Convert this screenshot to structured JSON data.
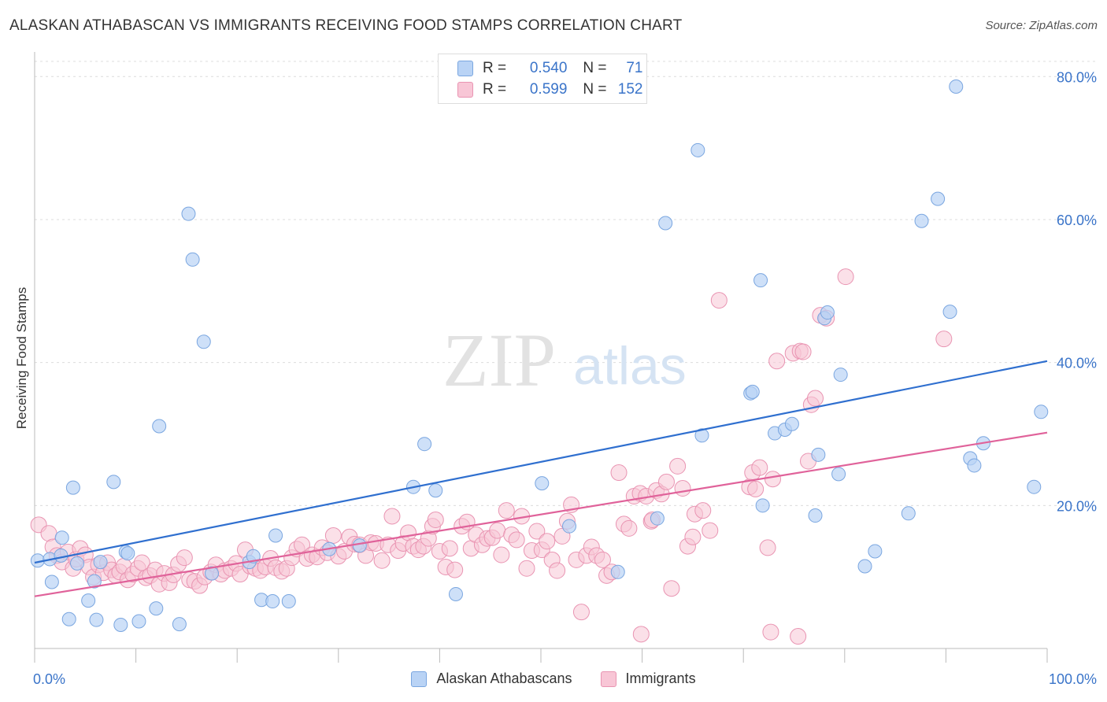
{
  "title": "ALASKAN ATHABASCAN VS IMMIGRANTS RECEIVING FOOD STAMPS CORRELATION CHART",
  "source": "Source: ZipAtlas.com",
  "watermark": {
    "zip": "ZIP",
    "atlas": "atlas"
  },
  "legend_top": [
    {
      "r_label": "R =",
      "r_value": "0.540",
      "n_label": "N =",
      "n_value": "71"
    },
    {
      "r_label": "R =",
      "r_value": "0.599",
      "n_label": "N =",
      "n_value": "152"
    }
  ],
  "colors": {
    "blue_fill": "#b9d3f5",
    "blue_stroke": "#7aa6e0",
    "blue_line": "#2f6fcf",
    "pink_fill": "#f8c6d6",
    "pink_stroke": "#e994b2",
    "pink_line": "#e0629a",
    "tick_text": "#3a74c9",
    "grid": "#dcdcdc"
  },
  "chart_data": {
    "type": "scatter",
    "title": "ALASKAN ATHABASCAN VS IMMIGRANTS RECEIVING FOOD STAMPS CORRELATION CHART",
    "xlabel": "",
    "ylabel": "Receiving Food Stamps",
    "xlim": [
      0,
      100
    ],
    "ylim": [
      0,
      83
    ],
    "x_tick_labels": [
      "0.0%",
      "100.0%"
    ],
    "y_ticks": [
      20,
      40,
      60,
      80
    ],
    "y_tick_labels": [
      "20.0%",
      "40.0%",
      "60.0%",
      "80.0%"
    ],
    "grid": true,
    "legend_position": "bottom-center",
    "series": [
      {
        "name": "Alaskan Athabascans",
        "color": "#b9d3f5",
        "trend": {
          "x": [
            0,
            100
          ],
          "y": [
            12.0,
            40.2
          ]
        },
        "points": [
          [
            0.3,
            12.3
          ],
          [
            1.5,
            12.5
          ],
          [
            1.7,
            9.3
          ],
          [
            2.7,
            15.5
          ],
          [
            2.6,
            13.0
          ],
          [
            3.4,
            4.1
          ],
          [
            3.8,
            22.5
          ],
          [
            4.2,
            11.9
          ],
          [
            5.3,
            6.7
          ],
          [
            5.9,
            9.4
          ],
          [
            6.1,
            4.0
          ],
          [
            6.5,
            12.1
          ],
          [
            7.8,
            23.3
          ],
          [
            8.5,
            3.3
          ],
          [
            9.0,
            13.5
          ],
          [
            9.2,
            13.3
          ],
          [
            10.3,
            3.8
          ],
          [
            12.0,
            5.6
          ],
          [
            12.3,
            31.1
          ],
          [
            14.3,
            3.4
          ],
          [
            15.2,
            60.8
          ],
          [
            15.6,
            54.4
          ],
          [
            16.7,
            42.9
          ],
          [
            17.5,
            10.5
          ],
          [
            21.2,
            12.1
          ],
          [
            21.6,
            12.9
          ],
          [
            22.4,
            6.8
          ],
          [
            23.5,
            6.6
          ],
          [
            23.8,
            15.8
          ],
          [
            25.1,
            6.6
          ],
          [
            29.1,
            13.9
          ],
          [
            32.1,
            14.4
          ],
          [
            37.4,
            22.6
          ],
          [
            38.5,
            28.6
          ],
          [
            39.6,
            22.1
          ],
          [
            41.6,
            7.6
          ],
          [
            50.1,
            23.1
          ],
          [
            52.8,
            17.1
          ],
          [
            57.6,
            10.7
          ],
          [
            61.5,
            18.2
          ],
          [
            62.3,
            59.5
          ],
          [
            65.5,
            69.7
          ],
          [
            65.9,
            29.8
          ],
          [
            70.7,
            35.7
          ],
          [
            70.9,
            35.9
          ],
          [
            71.7,
            51.5
          ],
          [
            71.9,
            20.0
          ],
          [
            73.1,
            30.1
          ],
          [
            74.1,
            30.6
          ],
          [
            74.8,
            31.4
          ],
          [
            77.1,
            18.6
          ],
          [
            77.4,
            27.1
          ],
          [
            78.0,
            46.2
          ],
          [
            78.3,
            47.0
          ],
          [
            79.4,
            24.4
          ],
          [
            79.6,
            38.3
          ],
          [
            82.0,
            11.5
          ],
          [
            83.0,
            13.6
          ],
          [
            86.3,
            18.9
          ],
          [
            87.6,
            59.8
          ],
          [
            89.2,
            62.9
          ],
          [
            90.4,
            47.1
          ],
          [
            91.0,
            78.6
          ],
          [
            92.4,
            26.6
          ],
          [
            92.8,
            25.6
          ],
          [
            93.7,
            28.7
          ],
          [
            98.7,
            22.6
          ],
          [
            99.4,
            33.1
          ]
        ]
      },
      {
        "name": "Immigrants",
        "color": "#f8c6d6",
        "trend": {
          "x": [
            0,
            100
          ],
          "y": [
            7.3,
            30.2
          ]
        },
        "points": [
          [
            0.4,
            17.3
          ],
          [
            1.4,
            16.1
          ],
          [
            1.8,
            14.2
          ],
          [
            2.2,
            13.0
          ],
          [
            2.7,
            12.1
          ],
          [
            3.3,
            13.5
          ],
          [
            3.8,
            11.2
          ],
          [
            4.1,
            12.5
          ],
          [
            4.5,
            14.0
          ],
          [
            5.0,
            13.1
          ],
          [
            5.4,
            11.4
          ],
          [
            5.8,
            10.0
          ],
          [
            6.3,
            11.7
          ],
          [
            6.8,
            10.6
          ],
          [
            7.2,
            12.0
          ],
          [
            7.6,
            11.0
          ],
          [
            8.0,
            10.2
          ],
          [
            8.4,
            10.7
          ],
          [
            8.8,
            11.5
          ],
          [
            9.2,
            9.6
          ],
          [
            9.7,
            10.4
          ],
          [
            10.2,
            11.2
          ],
          [
            10.6,
            12.0
          ],
          [
            11.0,
            9.9
          ],
          [
            11.4,
            10.2
          ],
          [
            11.9,
            11.0
          ],
          [
            12.3,
            9.0
          ],
          [
            12.8,
            10.5
          ],
          [
            13.3,
            9.2
          ],
          [
            13.7,
            10.3
          ],
          [
            14.2,
            11.8
          ],
          [
            14.8,
            12.7
          ],
          [
            15.3,
            9.6
          ],
          [
            15.8,
            9.4
          ],
          [
            16.3,
            8.8
          ],
          [
            16.8,
            10.0
          ],
          [
            17.4,
            10.7
          ],
          [
            17.9,
            11.7
          ],
          [
            18.4,
            10.4
          ],
          [
            18.8,
            10.9
          ],
          [
            19.4,
            11.2
          ],
          [
            19.9,
            11.9
          ],
          [
            20.3,
            10.4
          ],
          [
            20.8,
            13.8
          ],
          [
            21.3,
            11.5
          ],
          [
            21.8,
            11.2
          ],
          [
            22.3,
            10.9
          ],
          [
            22.8,
            11.4
          ],
          [
            23.3,
            12.6
          ],
          [
            23.8,
            11.3
          ],
          [
            24.4,
            10.8
          ],
          [
            24.9,
            11.2
          ],
          [
            25.4,
            12.7
          ],
          [
            25.9,
            13.9
          ],
          [
            26.4,
            14.5
          ],
          [
            26.9,
            12.6
          ],
          [
            27.4,
            13.1
          ],
          [
            27.9,
            12.8
          ],
          [
            28.4,
            14.1
          ],
          [
            28.9,
            13.4
          ],
          [
            29.5,
            15.8
          ],
          [
            30.0,
            12.9
          ],
          [
            30.6,
            13.6
          ],
          [
            31.1,
            15.6
          ],
          [
            31.6,
            14.6
          ],
          [
            32.1,
            14.5
          ],
          [
            32.7,
            13.0
          ],
          [
            33.2,
            14.8
          ],
          [
            33.7,
            14.7
          ],
          [
            34.3,
            12.3
          ],
          [
            34.9,
            14.5
          ],
          [
            35.3,
            18.5
          ],
          [
            35.9,
            13.7
          ],
          [
            36.4,
            14.7
          ],
          [
            36.9,
            16.2
          ],
          [
            37.4,
            14.3
          ],
          [
            37.9,
            13.8
          ],
          [
            38.4,
            14.3
          ],
          [
            38.9,
            15.4
          ],
          [
            39.3,
            17.1
          ],
          [
            39.6,
            18.0
          ],
          [
            40.0,
            13.6
          ],
          [
            40.6,
            11.4
          ],
          [
            41.0,
            14.0
          ],
          [
            41.5,
            11.0
          ],
          [
            42.2,
            17.1
          ],
          [
            42.7,
            17.7
          ],
          [
            43.1,
            14.0
          ],
          [
            43.6,
            15.9
          ],
          [
            44.2,
            14.5
          ],
          [
            44.7,
            15.4
          ],
          [
            45.2,
            15.5
          ],
          [
            45.7,
            16.5
          ],
          [
            46.1,
            13.1
          ],
          [
            46.6,
            19.3
          ],
          [
            47.1,
            15.9
          ],
          [
            47.6,
            15.2
          ],
          [
            48.1,
            18.5
          ],
          [
            48.6,
            11.2
          ],
          [
            49.1,
            13.7
          ],
          [
            49.6,
            16.4
          ],
          [
            50.1,
            13.8
          ],
          [
            50.6,
            15.0
          ],
          [
            51.1,
            12.4
          ],
          [
            51.6,
            10.9
          ],
          [
            52.1,
            15.7
          ],
          [
            52.6,
            17.8
          ],
          [
            53.0,
            20.1
          ],
          [
            53.5,
            12.4
          ],
          [
            54.0,
            5.1
          ],
          [
            54.5,
            13.0
          ],
          [
            55.0,
            14.2
          ],
          [
            55.5,
            13.0
          ],
          [
            56.1,
            12.4
          ],
          [
            56.5,
            10.2
          ],
          [
            57.0,
            10.7
          ],
          [
            57.7,
            24.6
          ],
          [
            58.2,
            17.4
          ],
          [
            58.7,
            16.8
          ],
          [
            59.2,
            21.3
          ],
          [
            59.8,
            21.7
          ],
          [
            59.9,
            2.0
          ],
          [
            60.4,
            21.3
          ],
          [
            60.9,
            17.8
          ],
          [
            61.0,
            18.0
          ],
          [
            61.4,
            22.1
          ],
          [
            61.9,
            21.6
          ],
          [
            62.4,
            23.3
          ],
          [
            62.9,
            8.4
          ],
          [
            63.5,
            25.5
          ],
          [
            64.0,
            22.4
          ],
          [
            64.5,
            14.3
          ],
          [
            65.0,
            15.6
          ],
          [
            65.2,
            18.8
          ],
          [
            66.0,
            19.3
          ],
          [
            66.7,
            16.5
          ],
          [
            67.6,
            48.7
          ],
          [
            70.6,
            22.6
          ],
          [
            70.9,
            24.6
          ],
          [
            71.2,
            22.3
          ],
          [
            71.6,
            25.3
          ],
          [
            72.4,
            14.1
          ],
          [
            72.7,
            2.3
          ],
          [
            72.9,
            23.7
          ],
          [
            73.3,
            40.2
          ],
          [
            74.9,
            41.3
          ],
          [
            75.4,
            1.7
          ],
          [
            75.6,
            41.6
          ],
          [
            75.9,
            41.5
          ],
          [
            76.4,
            26.2
          ],
          [
            76.7,
            34.1
          ],
          [
            77.1,
            35.0
          ],
          [
            77.6,
            46.6
          ],
          [
            78.2,
            46.2
          ],
          [
            80.1,
            52.0
          ],
          [
            89.8,
            43.3
          ]
        ]
      }
    ]
  },
  "bottom_legend": [
    "Alaskan Athabascans",
    "Immigrants"
  ]
}
